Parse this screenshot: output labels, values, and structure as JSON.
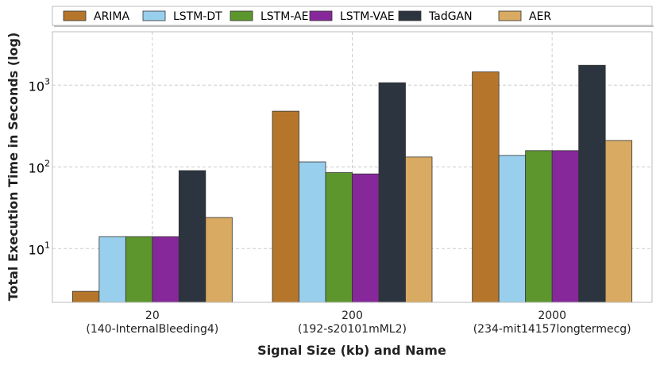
{
  "chart_data": {
    "type": "bar",
    "title": "",
    "xlabel": "Signal Size (kb) and Name",
    "ylabel": "Total Execution Time in Seconds (log)",
    "yscale": "log",
    "ylim": [
      2.2,
      4500
    ],
    "grid": true,
    "legend_position": "top",
    "categories": [
      {
        "size": "20",
        "name": "(140-InternalBleeding4)"
      },
      {
        "size": "200",
        "name": "(192-s20101mML2)"
      },
      {
        "size": "2000",
        "name": "(234-mit14157longtermecg)"
      }
    ],
    "yticks": [
      {
        "base": "10",
        "exp": "1",
        "value": 10
      },
      {
        "base": "10",
        "exp": "2",
        "value": 100
      },
      {
        "base": "10",
        "exp": "3",
        "value": 1000
      }
    ],
    "series": [
      {
        "name": "ARIMA",
        "color": "#b5762b",
        "values": [
          3,
          480,
          1450
        ]
      },
      {
        "name": "LSTM-DT",
        "color": "#98cfec",
        "values": [
          14,
          115,
          138
        ]
      },
      {
        "name": "LSTM-AE",
        "color": "#5e962e",
        "values": [
          14,
          85,
          158
        ]
      },
      {
        "name": "LSTM-VAE",
        "color": "#86289a",
        "values": [
          14,
          82,
          158
        ]
      },
      {
        "name": "TadGAN",
        "color": "#2c353f",
        "values": [
          90,
          1070,
          1750
        ]
      },
      {
        "name": "AER",
        "color": "#d8aa62",
        "values": [
          24,
          132,
          210
        ]
      }
    ]
  }
}
